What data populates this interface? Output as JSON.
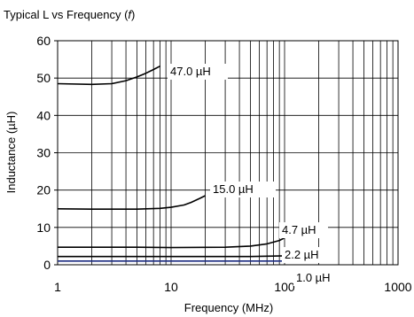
{
  "chart_data": {
    "type": "line",
    "title": "Typical  L vs Frequency (",
    "title_symbol": "f",
    "title_close": ")",
    "xlabel": "Frequency (MHz)",
    "ylabel": "Inductance (µH)",
    "x_scale": "log",
    "xlim": [
      1,
      1000
    ],
    "ylim": [
      0,
      60
    ],
    "x_ticks": [
      "1",
      "10",
      "100",
      "1000"
    ],
    "y_ticks": [
      "0",
      "10",
      "20",
      "30",
      "40",
      "50",
      "60"
    ],
    "grid": true,
    "series": [
      {
        "name": "47.0 µH",
        "color": "#000000",
        "x": [
          1,
          2,
          3,
          4,
          5,
          6,
          7,
          8
        ],
        "y": [
          48.5,
          48.3,
          48.5,
          49.3,
          50.3,
          51.3,
          52.3,
          53.2
        ]
      },
      {
        "name": "15.0 µH",
        "color": "#000000",
        "x": [
          1,
          2,
          5,
          8,
          10,
          13,
          15,
          18,
          20
        ],
        "y": [
          15.0,
          14.9,
          14.9,
          15.1,
          15.4,
          16.0,
          16.7,
          17.8,
          18.5
        ]
      },
      {
        "name": "4.7 µH",
        "color": "#000000",
        "x": [
          1,
          5,
          10,
          30,
          50,
          70,
          90,
          100
        ],
        "y": [
          4.7,
          4.7,
          4.6,
          4.7,
          5.0,
          5.6,
          6.5,
          7.2
        ]
      },
      {
        "name": "2.2 µH",
        "color": "#000000",
        "x": [
          1,
          10,
          50,
          100
        ],
        "y": [
          2.2,
          2.2,
          2.2,
          2.4
        ]
      },
      {
        "name": "1.0 µH",
        "color": "#1a2a80",
        "x": [
          1,
          10,
          50,
          100
        ],
        "y": [
          1.0,
          1.0,
          1.0,
          1.0
        ]
      }
    ]
  }
}
